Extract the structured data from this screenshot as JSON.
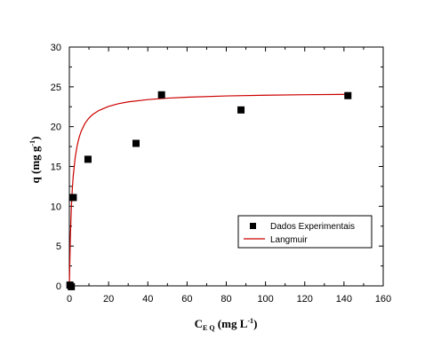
{
  "chart_data": {
    "type": "scatter",
    "xlabel": {
      "main": "C",
      "sub": "E Q",
      "unit": " (mg L",
      "sup": "-1",
      "close": ")"
    },
    "ylabel": {
      "main": "q (mg g",
      "sup": "-1",
      "close": ")"
    },
    "xlim": [
      0,
      160
    ],
    "ylim": [
      0,
      30
    ],
    "xticks": [
      0,
      20,
      40,
      60,
      80,
      100,
      120,
      140,
      160
    ],
    "yticks": [
      0,
      5,
      10,
      15,
      20,
      25,
      30
    ],
    "grid": false,
    "legend_position": "lower-right",
    "series": [
      {
        "name": "Dados Experimentais",
        "kind": "scatter",
        "marker": "square",
        "color": "#000000",
        "x": [
          0.3,
          1.0,
          2.0,
          9.5,
          34.0,
          47.0,
          87.5,
          142.0
        ],
        "y": [
          0.1,
          -0.1,
          11.1,
          15.9,
          17.9,
          24.0,
          22.1,
          23.9
        ]
      },
      {
        "name": "Langmuir",
        "kind": "line",
        "color": "#cc0000",
        "x": [
          0,
          0.5,
          1,
          1.5,
          2,
          3,
          4,
          5,
          6,
          8,
          10,
          12,
          15,
          20,
          25,
          30,
          40,
          50,
          60,
          80,
          100,
          120,
          142
        ],
        "y": [
          0,
          6.08,
          9.72,
          12.14,
          13.87,
          16.17,
          17.64,
          18.66,
          19.41,
          20.43,
          21.09,
          21.55,
          22.02,
          22.55,
          22.88,
          23.11,
          23.4,
          23.58,
          23.7,
          23.86,
          23.95,
          24.01,
          24.06
        ]
      }
    ]
  }
}
